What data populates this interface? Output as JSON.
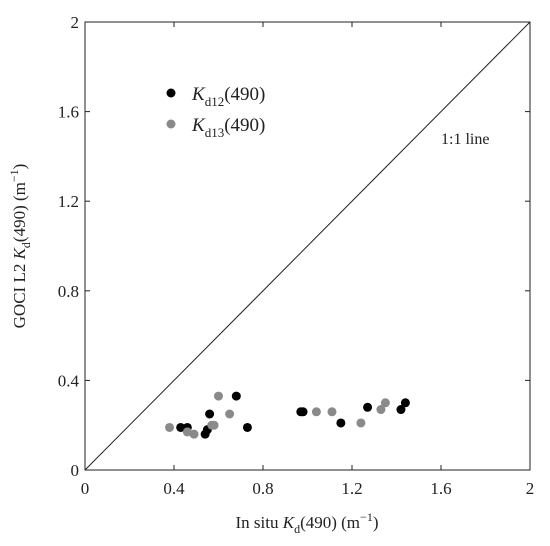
{
  "chart_data": {
    "type": "scatter",
    "xlim": [
      0,
      2
    ],
    "ylim": [
      0,
      2
    ],
    "x_ticks": [
      "0",
      "0.4",
      "0.8",
      "1.2",
      "1.6",
      "2"
    ],
    "y_ticks": [
      "0",
      "0.4",
      "0.8",
      "1.2",
      "1.6",
      "2"
    ],
    "x_tick_values": [
      0,
      0.4,
      0.8,
      1.2,
      1.6,
      2
    ],
    "y_tick_values": [
      0,
      0.4,
      0.8,
      1.2,
      1.6,
      2
    ],
    "xlabel": {
      "prefix": "In situ ",
      "var": "K",
      "sub": "d",
      "suffix": "(490) (m",
      "sup": "−1",
      "close": ")"
    },
    "ylabel": {
      "prefix": "GOCI L2 ",
      "var": "K",
      "sub": "d",
      "suffix": "(490) (m",
      "sup": "−1",
      "close": ")"
    },
    "reference_line": {
      "label": "1:1 line",
      "from": [
        0,
        0
      ],
      "to": [
        2,
        2
      ]
    },
    "legend_position": "top-left",
    "series": [
      {
        "var": "K",
        "sub": "d12",
        "suffix": "(490)",
        "color": "#000000",
        "points": [
          [
            0.43,
            0.19
          ],
          [
            0.46,
            0.19
          ],
          [
            0.54,
            0.16
          ],
          [
            0.55,
            0.18
          ],
          [
            0.56,
            0.25
          ],
          [
            0.68,
            0.33
          ],
          [
            0.73,
            0.19
          ],
          [
            0.97,
            0.26
          ],
          [
            0.98,
            0.26
          ],
          [
            1.15,
            0.21
          ],
          [
            1.27,
            0.28
          ],
          [
            1.42,
            0.27
          ],
          [
            1.44,
            0.3
          ]
        ]
      },
      {
        "var": "K",
        "sub": "d13",
        "suffix": "(490)",
        "color": "#8a8a8a",
        "points": [
          [
            0.38,
            0.19
          ],
          [
            0.46,
            0.17
          ],
          [
            0.49,
            0.16
          ],
          [
            0.57,
            0.2
          ],
          [
            0.58,
            0.2
          ],
          [
            0.6,
            0.33
          ],
          [
            0.65,
            0.25
          ],
          [
            1.04,
            0.26
          ],
          [
            1.11,
            0.26
          ],
          [
            1.24,
            0.21
          ],
          [
            1.33,
            0.27
          ],
          [
            1.35,
            0.3
          ]
        ]
      }
    ]
  }
}
